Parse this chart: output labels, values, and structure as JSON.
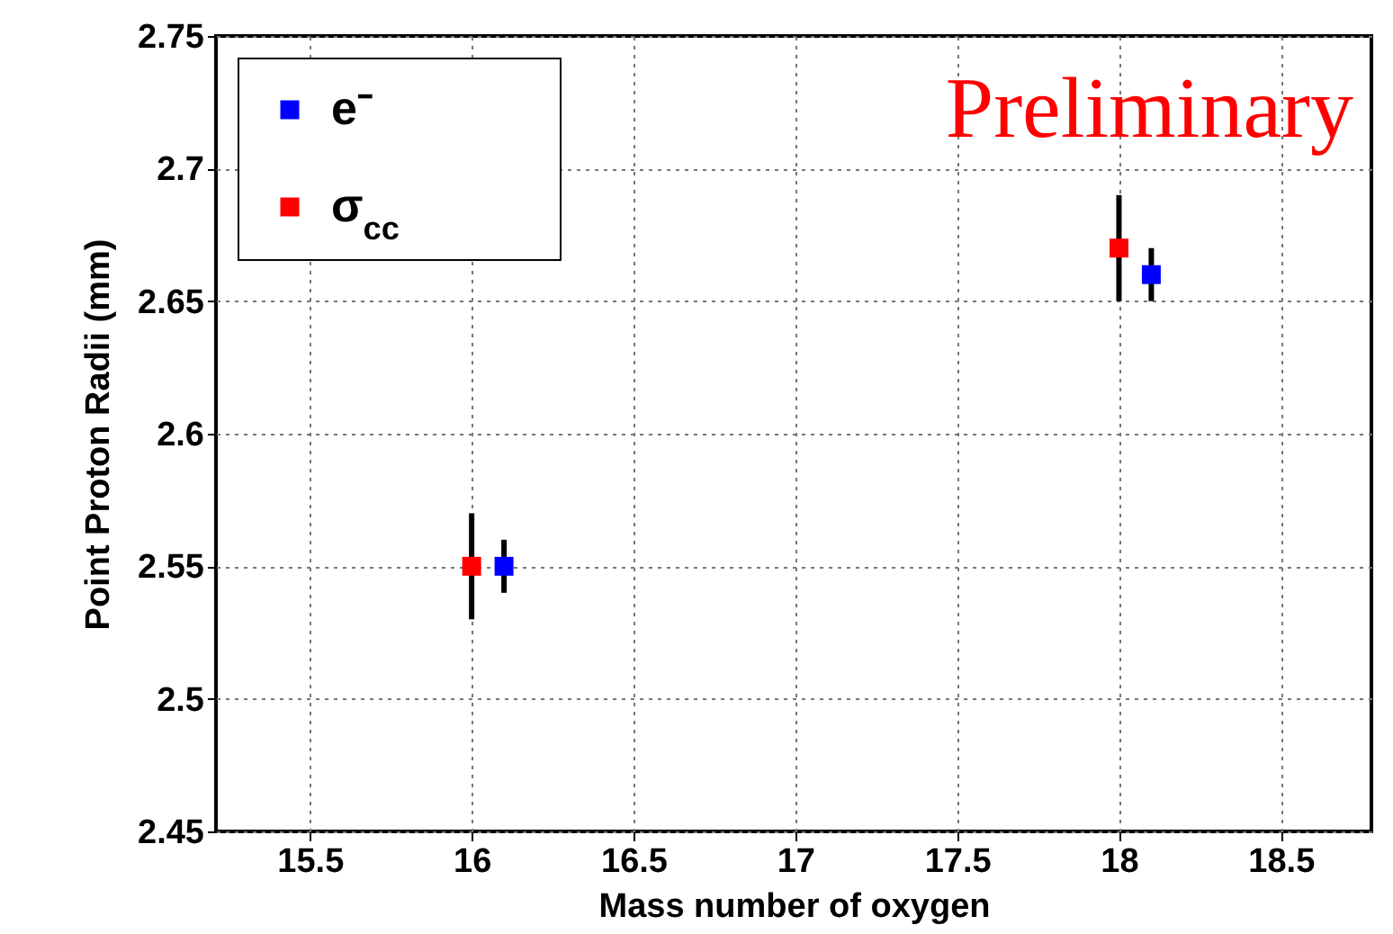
{
  "chart_data": {
    "type": "scatter",
    "xlabel": "Mass number of oxygen",
    "ylabel": "Point Proton Radii (mm)",
    "xlim": [
      15.21,
      18.78
    ],
    "xticks": [
      15.5,
      16,
      16.5,
      17,
      17.5,
      18,
      18.5
    ],
    "ylim": [
      2.45,
      2.75
    ],
    "yticks": [
      2.45,
      2.5,
      2.55,
      2.6,
      2.65,
      2.7,
      2.75
    ],
    "grid": true,
    "legend": "top left",
    "marker": "square",
    "annotations": [
      "Preliminary"
    ],
    "series": [
      {
        "name": "e⁻",
        "color": "#0000ff",
        "x": [
          16.1,
          18.1
        ],
        "values": [
          2.55,
          2.66
        ],
        "errors": [
          0.01,
          0.01
        ]
      },
      {
        "name": "σ$_{cc}$",
        "color": "#ff0000",
        "x": [
          16,
          18
        ],
        "values": [
          2.55,
          2.67
        ],
        "errors": [
          0.02,
          0.02
        ]
      }
    ]
  }
}
